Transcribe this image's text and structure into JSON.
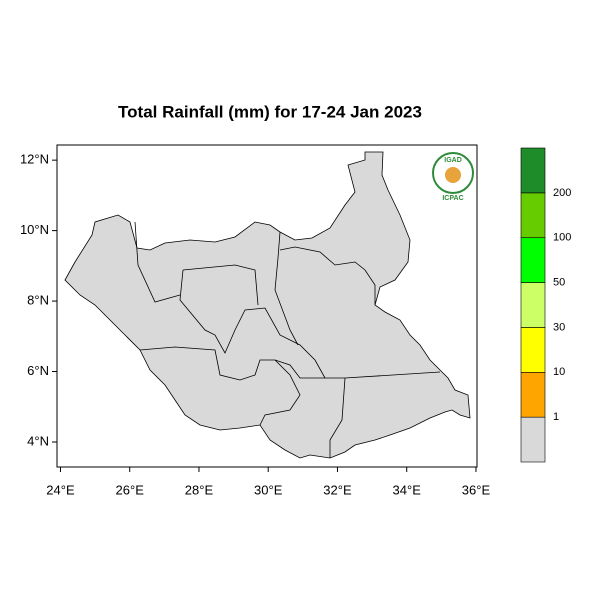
{
  "chart_data": {
    "type": "map",
    "title": "Total Rainfall (mm) for 17-24 Jan 2023",
    "xlim": [
      23.9,
      36.03
    ],
    "ylim": [
      3.29,
      12.43
    ],
    "xticks": [
      {
        "value": 24,
        "label": "24°E"
      },
      {
        "value": 26,
        "label": "26°E"
      },
      {
        "value": 28,
        "label": "28°E"
      },
      {
        "value": 30,
        "label": "30°E"
      },
      {
        "value": 32,
        "label": "32°E"
      },
      {
        "value": 34,
        "label": "34°E"
      },
      {
        "value": 36,
        "label": "36°E"
      }
    ],
    "yticks": [
      {
        "value": 4,
        "label": "4°N"
      },
      {
        "value": 6,
        "label": "6°N"
      },
      {
        "value": 8,
        "label": "8°N"
      },
      {
        "value": 10,
        "label": "10°N"
      },
      {
        "value": 12,
        "label": "12°N"
      }
    ],
    "colorbar": {
      "colors": [
        "#d9d9d9",
        "#ffa500",
        "#ffff00",
        "#ccff66",
        "#00ff00",
        "#66cc00",
        "#1f8c2a"
      ],
      "labels": [
        1,
        10,
        30,
        50,
        100,
        200
      ]
    },
    "logo": {
      "top": "IGAD",
      "bottom": "ICPAC"
    }
  }
}
